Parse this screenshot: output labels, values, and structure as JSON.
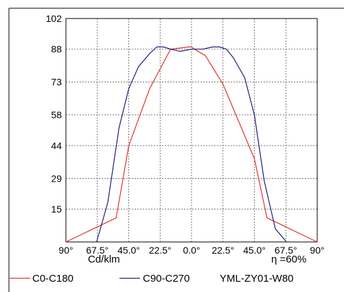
{
  "chart_data": {
    "type": "line",
    "title": "",
    "xlabel": "",
    "ylabel": "",
    "x_ticks": [
      "90°",
      "67.5°",
      "45.0°",
      "22.5°",
      "0.0°",
      "22.5°",
      "45.0°",
      "67.5°",
      "90°"
    ],
    "y_ticks": [
      102,
      88,
      73,
      58,
      44,
      29,
      15
    ],
    "xlim": [
      -90,
      90
    ],
    "ylim": [
      0,
      102
    ],
    "grid": true,
    "unit_label": "Cd/klm",
    "efficiency_label": "η =60%",
    "model_label": "YML-ZY01-W80",
    "legend_position": "bottom",
    "series": [
      {
        "name": "C0-C180",
        "color": "#e0302a",
        "x": [
          -90,
          -54,
          -45,
          -30,
          -15,
          -2,
          0,
          2,
          10,
          22.5,
          45,
          54,
          90
        ],
        "y": [
          0,
          11,
          44,
          70,
          88,
          89,
          89,
          88,
          85,
          72,
          38,
          11,
          0
        ]
      },
      {
        "name": "C90-C270",
        "color": "#1c1c7a",
        "x": [
          -68,
          -60,
          -52,
          -45,
          -38,
          -30,
          -25,
          -20,
          -15,
          -8,
          0,
          8,
          15,
          20,
          25,
          30,
          38,
          45,
          52,
          60,
          68
        ],
        "y": [
          0,
          18,
          52,
          70,
          80,
          86,
          89,
          89,
          88,
          87,
          88,
          88,
          89,
          89,
          88,
          84,
          75,
          58,
          28,
          6,
          0
        ]
      }
    ]
  }
}
